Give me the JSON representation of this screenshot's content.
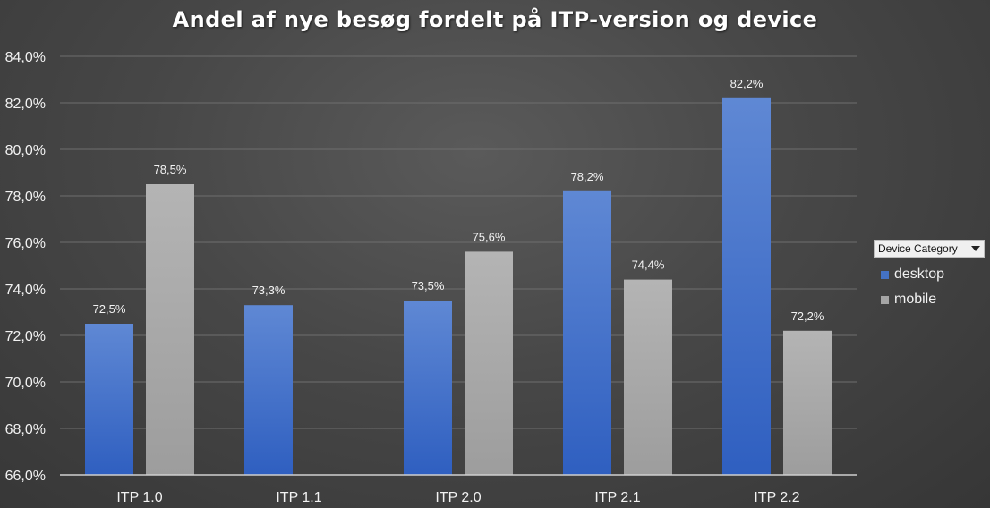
{
  "chart_data": {
    "type": "bar",
    "title": "Andel af nye besøg fordelt på ITP-version og device",
    "categories": [
      "ITP 1.0",
      "ITP 1.1",
      "ITP 2.0",
      "ITP 2.1",
      "ITP 2.2"
    ],
    "series": [
      {
        "name": "desktop",
        "values": [
          72.5,
          73.3,
          73.5,
          78.2,
          82.2
        ],
        "labels": [
          "72,5%",
          "73,3%",
          "73,5%",
          "78,2%",
          "82,2%"
        ],
        "color": "#4472c4"
      },
      {
        "name": "mobile",
        "values": [
          78.5,
          null,
          75.6,
          74.4,
          72.2
        ],
        "labels": [
          "78,5%",
          null,
          "75,6%",
          "74,4%",
          "72,2%"
        ],
        "color": "#a5a5a5"
      }
    ],
    "ylim": [
      66,
      84
    ],
    "yticks": [
      66,
      68,
      70,
      72,
      74,
      76,
      78,
      80,
      82,
      84
    ],
    "ytick_labels": [
      "66,0%",
      "68,0%",
      "70,0%",
      "72,0%",
      "74,0%",
      "76,0%",
      "78,0%",
      "80,0%",
      "82,0%",
      "84,0%"
    ],
    "xlabel": "",
    "ylabel": "",
    "grid": true,
    "legend_position": "right",
    "legend_title": "Device Category"
  }
}
